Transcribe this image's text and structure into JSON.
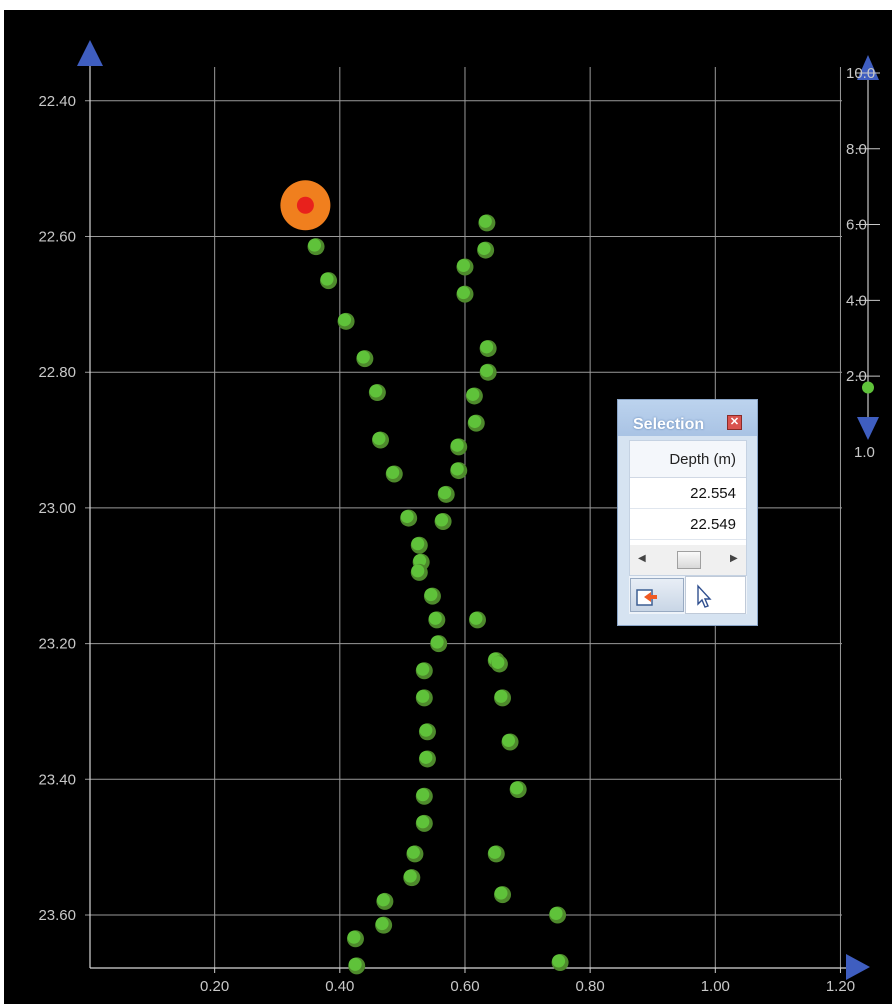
{
  "chart_data": {
    "type": "scatter",
    "x_ticks": [
      "0.20",
      "0.40",
      "0.60",
      "0.80",
      "1.00",
      "1.20"
    ],
    "y_ticks": [
      "22.40",
      "22.60",
      "22.80",
      "23.00",
      "23.20",
      "23.40",
      "23.60"
    ],
    "xlim": [
      0.0,
      1.2
    ],
    "ylim": [
      22.36,
      23.68
    ],
    "y_inverted": true,
    "grid": true,
    "marker_color": "#5fc23a",
    "marker_color_dim": "#4e8a2c",
    "highlight_color": "#f07f1e",
    "highlight_center_color": "#e8211c",
    "highlight_point": {
      "x": 0.345,
      "y": 22.554
    },
    "series": [
      {
        "points": [
          [
            0.362,
            22.615
          ],
          [
            0.382,
            22.665
          ],
          [
            0.41,
            22.725
          ],
          [
            0.44,
            22.78
          ],
          [
            0.46,
            22.83
          ],
          [
            0.465,
            22.9
          ],
          [
            0.487,
            22.95
          ],
          [
            0.51,
            23.015
          ],
          [
            0.527,
            23.055
          ],
          [
            0.53,
            23.08
          ],
          [
            0.527,
            23.095
          ],
          [
            0.548,
            23.13
          ],
          [
            0.555,
            23.165
          ],
          [
            0.558,
            23.2
          ],
          [
            0.535,
            23.24
          ],
          [
            0.535,
            23.28
          ],
          [
            0.54,
            23.33
          ],
          [
            0.54,
            23.37
          ],
          [
            0.535,
            23.425
          ],
          [
            0.535,
            23.465
          ],
          [
            0.52,
            23.51
          ],
          [
            0.515,
            23.545
          ],
          [
            0.472,
            23.58
          ],
          [
            0.47,
            23.615
          ],
          [
            0.425,
            23.635
          ],
          [
            0.427,
            23.675
          ]
        ]
      },
      {
        "points": [
          [
            0.635,
            22.58
          ],
          [
            0.633,
            22.62
          ],
          [
            0.6,
            22.645
          ],
          [
            0.6,
            22.685
          ],
          [
            0.637,
            22.765
          ],
          [
            0.637,
            22.8
          ],
          [
            0.615,
            22.835
          ],
          [
            0.618,
            22.875
          ],
          [
            0.59,
            22.91
          ],
          [
            0.59,
            22.945
          ],
          [
            0.57,
            22.98
          ],
          [
            0.565,
            23.02
          ],
          [
            0.62,
            23.165
          ],
          [
            0.65,
            23.225
          ],
          [
            0.655,
            23.23
          ],
          [
            0.66,
            23.28
          ],
          [
            0.672,
            23.345
          ],
          [
            0.685,
            23.415
          ],
          [
            0.65,
            23.51
          ],
          [
            0.66,
            23.57
          ],
          [
            0.748,
            23.6
          ],
          [
            0.752,
            23.67
          ]
        ]
      }
    ],
    "color_scale": {
      "ticks": [
        "10.0",
        "8.0",
        "6.0",
        "4.0",
        "2.0"
      ],
      "min_label": "1.0",
      "range": [
        1.0,
        10.0
      ],
      "marker_value": 1.7
    }
  },
  "selection_panel": {
    "title": "Selection",
    "close_icon": "close-icon",
    "column_header": "Depth (m)",
    "rows": [
      "22.554",
      "22.549"
    ],
    "tools": [
      "select-point-icon",
      "pointer-icon"
    ]
  }
}
